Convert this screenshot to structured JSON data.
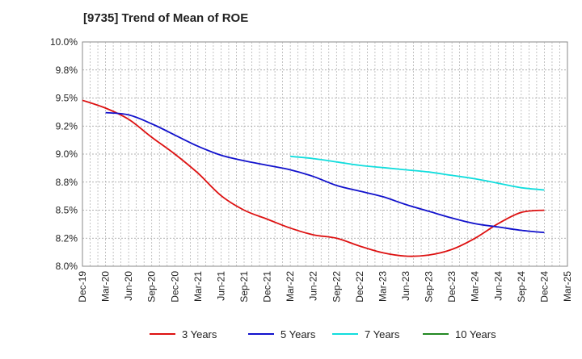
{
  "chart_data": {
    "type": "line",
    "title": "[9735]  Trend of Mean of ROE",
    "xlabel": "",
    "ylabel": "",
    "x_ticks": [
      "Dec-19",
      "Mar-20",
      "Jun-20",
      "Sep-20",
      "Dec-20",
      "Mar-21",
      "Jun-21",
      "Sep-21",
      "Dec-21",
      "Mar-22",
      "Jun-22",
      "Sep-22",
      "Dec-22",
      "Mar-23",
      "Jun-23",
      "Sep-23",
      "Dec-23",
      "Mar-24",
      "Jun-24",
      "Sep-24",
      "Dec-24",
      "Mar-25"
    ],
    "y_ticks": [
      "8.0%",
      "8.2%",
      "8.5%",
      "8.8%",
      "9.0%",
      "9.2%",
      "9.5%",
      "9.8%",
      "10.0%"
    ],
    "ylim": [
      8.0,
      10.0
    ],
    "grid": true,
    "legend_position": "bottom",
    "series": [
      {
        "name": "3 Years",
        "color": "#dd1111",
        "start_index": 0,
        "values": [
          9.48,
          9.41,
          9.31,
          9.15,
          9.0,
          8.83,
          8.63,
          8.5,
          8.42,
          8.34,
          8.28,
          8.25,
          8.18,
          8.12,
          8.09,
          8.1,
          8.15,
          8.25,
          8.38,
          8.48,
          8.5
        ]
      },
      {
        "name": "5 Years",
        "color": "#1111cc",
        "start_index": 1,
        "values": [
          9.37,
          9.35,
          9.27,
          9.17,
          9.07,
          8.99,
          8.94,
          8.9,
          8.86,
          8.8,
          8.72,
          8.67,
          8.62,
          8.55,
          8.49,
          8.43,
          8.38,
          8.35,
          8.32,
          8.3
        ]
      },
      {
        "name": "7 Years",
        "color": "#11dddd",
        "start_index": 9,
        "values": [
          8.98,
          8.96,
          8.93,
          8.9,
          8.88,
          8.86,
          8.84,
          8.81,
          8.78,
          8.74,
          8.7,
          8.68
        ]
      },
      {
        "name": "10 Years",
        "color": "#228822",
        "start_index": 0,
        "values": []
      }
    ]
  }
}
